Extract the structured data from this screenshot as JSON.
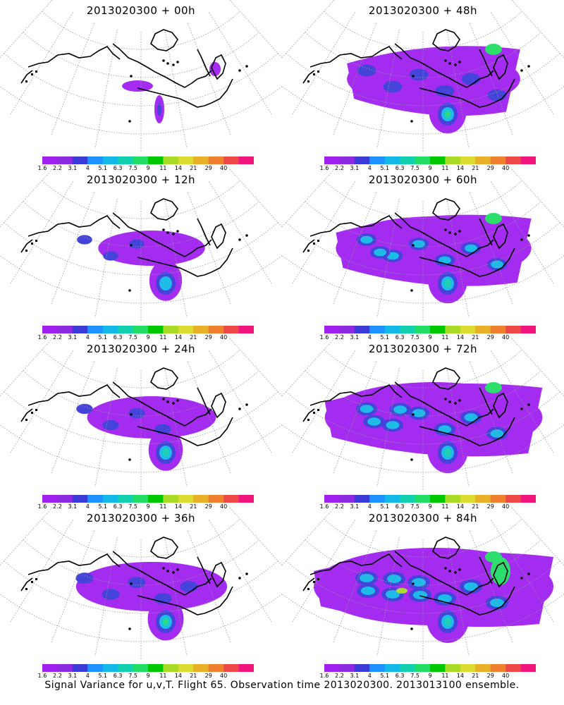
{
  "panels": [
    {
      "id": "p00",
      "title": "2013020300 + 00h",
      "lead_hours": 0
    },
    {
      "id": "p48",
      "title": "2013020300 + 48h",
      "lead_hours": 48
    },
    {
      "id": "p12",
      "title": "2013020300 + 12h",
      "lead_hours": 12
    },
    {
      "id": "p60",
      "title": "2013020300 + 60h",
      "lead_hours": 60
    },
    {
      "id": "p24",
      "title": "2013020300 + 24h",
      "lead_hours": 24
    },
    {
      "id": "p72",
      "title": "2013020300 + 72h",
      "lead_hours": 72
    },
    {
      "id": "p36",
      "title": "2013020300 + 36h",
      "lead_hours": 36
    },
    {
      "id": "p84",
      "title": "2013020300 + 84h",
      "lead_hours": 84
    }
  ],
  "colorbar": {
    "labels": [
      "1.6",
      "2.2",
      "3.1",
      "4",
      "5.1",
      "6.3",
      "7.5",
      "9",
      "11",
      "14",
      "21",
      "29",
      "40"
    ],
    "colors": [
      "#a020f0",
      "#8a2be2",
      "#3a3ad8",
      "#1e90ff",
      "#12b8e8",
      "#10d0b0",
      "#22dd66",
      "#00c800",
      "#a8dc28",
      "#dcdc30",
      "#e8b028",
      "#f08030",
      "#f04848",
      "#f0147c"
    ]
  },
  "footer": "Signal Variance for u,v,T. Flight 65. Observation time 2013020300. 2013013100 ensemble."
}
